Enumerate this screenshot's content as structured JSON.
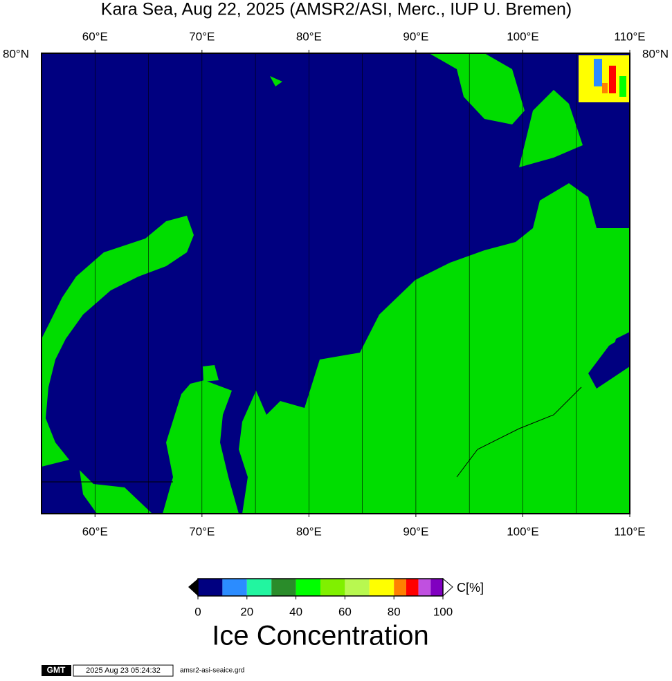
{
  "title": "Kara Sea, Aug 22, 2025 (AMSR2/ASI, Merc., IUP U. Bremen)",
  "map": {
    "xlim": [
      55,
      110
    ],
    "xticks": [
      {
        "value": 60,
        "label": "60°E"
      },
      {
        "value": 70,
        "label": "70°E"
      },
      {
        "value": 80,
        "label": "80°E"
      },
      {
        "value": 90,
        "label": "90°E"
      },
      {
        "value": 100,
        "label": "100°E"
      },
      {
        "value": 110,
        "label": "110°E"
      }
    ],
    "minor_grid": [
      65,
      75,
      85,
      95,
      105
    ],
    "lat_label": "80°N",
    "water_color": "#000080",
    "land_color": "#00dd00"
  },
  "colorbar": {
    "title": "Ice Concentration",
    "unit": "C[%]",
    "ticks": [
      0,
      20,
      40,
      60,
      80,
      100
    ],
    "levels": [
      0,
      10,
      20,
      30,
      40,
      50,
      60,
      70,
      80,
      85,
      90,
      95,
      100
    ],
    "colors": [
      "#000080",
      "#2b8cff",
      "#22f5a0",
      "#2a8c2a",
      "#00ff00",
      "#80f000",
      "#b8f850",
      "#ffff00",
      "#ff8000",
      "#ff0000",
      "#c050e0",
      "#8000c0"
    ]
  },
  "footer": {
    "logo": "GMT",
    "timestamp": "2025 Aug 23 05:24:32",
    "filename": "amsr2-asi-seaice.grd"
  }
}
